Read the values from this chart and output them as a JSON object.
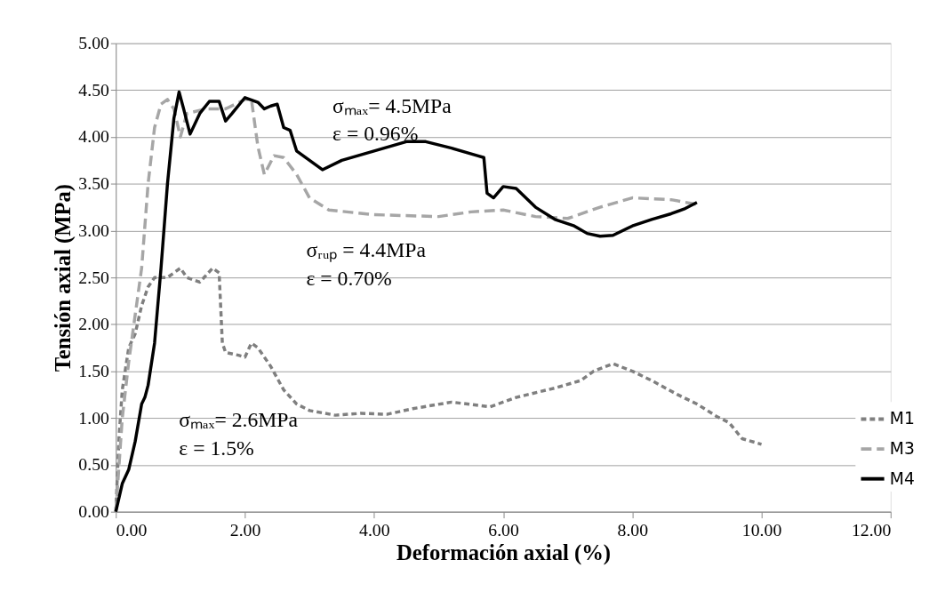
{
  "chart_data": {
    "type": "line",
    "xlabel": "Deformación axial (%)",
    "ylabel": "Tensión axial (MPa)",
    "xlim": [
      0,
      12
    ],
    "ylim": [
      0,
      5
    ],
    "xticks": [
      {
        "value": 0,
        "label": "0.00"
      },
      {
        "value": 2,
        "label": "2.00"
      },
      {
        "value": 4,
        "label": "4.00"
      },
      {
        "value": 6,
        "label": "6.00"
      },
      {
        "value": 8,
        "label": "8.00"
      },
      {
        "value": 10,
        "label": "10.00"
      },
      {
        "value": 12,
        "label": "12.00"
      }
    ],
    "yticks": [
      {
        "value": 0,
        "label": "0.00"
      },
      {
        "value": 0.5,
        "label": "0.50"
      },
      {
        "value": 1,
        "label": "1.00"
      },
      {
        "value": 1.5,
        "label": "1.50"
      },
      {
        "value": 2,
        "label": "2.00"
      },
      {
        "value": 2.5,
        "label": "2.50"
      },
      {
        "value": 3,
        "label": "3.00"
      },
      {
        "value": 3.5,
        "label": "3.50"
      },
      {
        "value": 4,
        "label": "4.00"
      },
      {
        "value": 4.5,
        "label": "4.50"
      },
      {
        "value": 5,
        "label": "5.00"
      }
    ],
    "grid": "y",
    "legend": "bottom right",
    "marker": "none",
    "annotations": [
      "σₘₐₓ= 4.5MPa\nε = 0.96%",
      "σᵣᵤₚ = 4.4MPa\nε = 0.70%",
      "σₘₐₓ= 2.6MPa\nε = 1.5%"
    ],
    "series": [
      {
        "name": "M1",
        "color": "#7f7f7f",
        "line_style": "dashed",
        "x": [
          0,
          0.05,
          0.1,
          0.2,
          0.3,
          0.4,
          0.5,
          0.6,
          0.8,
          1.0,
          1.1,
          1.3,
          1.5,
          1.6,
          1.65,
          1.7,
          1.9,
          2.0,
          2.1,
          2.2,
          2.4,
          2.6,
          2.8,
          3.0,
          3.4,
          3.8,
          4.2,
          4.6,
          5.2,
          5.8,
          6.2,
          6.8,
          7.2,
          7.4,
          7.7,
          8.0,
          8.3,
          8.7,
          9.0,
          9.3,
          9.5,
          9.7,
          10.0
        ],
        "values": [
          0,
          0.8,
          1.3,
          1.75,
          1.9,
          2.2,
          2.4,
          2.5,
          2.5,
          2.6,
          2.5,
          2.45,
          2.6,
          2.55,
          1.8,
          1.7,
          1.67,
          1.65,
          1.8,
          1.75,
          1.55,
          1.3,
          1.15,
          1.08,
          1.03,
          1.05,
          1.04,
          1.1,
          1.17,
          1.12,
          1.22,
          1.32,
          1.4,
          1.5,
          1.58,
          1.5,
          1.4,
          1.25,
          1.15,
          1.02,
          0.95,
          0.78,
          0.72
        ]
      },
      {
        "name": "M3",
        "color": "#a6a6a6",
        "line_style": "dashed",
        "x": [
          0,
          0.05,
          0.1,
          0.2,
          0.3,
          0.4,
          0.5,
          0.6,
          0.7,
          0.8,
          0.9,
          1.0,
          1.1,
          1.4,
          1.7,
          2.0,
          2.1,
          2.2,
          2.3,
          2.45,
          2.6,
          2.8,
          3.0,
          3.3,
          4.0,
          5.0,
          5.5,
          6.0,
          6.5,
          7.0,
          7.5,
          8.0,
          8.6,
          9.0
        ],
        "values": [
          0,
          0.5,
          1.0,
          1.6,
          2.1,
          2.6,
          3.5,
          4.1,
          4.35,
          4.4,
          4.3,
          4.0,
          4.25,
          4.3,
          4.3,
          4.4,
          4.4,
          3.9,
          3.6,
          3.8,
          3.78,
          3.6,
          3.35,
          3.22,
          3.17,
          3.15,
          3.2,
          3.22,
          3.15,
          3.13,
          3.25,
          3.35,
          3.33,
          3.28
        ]
      },
      {
        "name": "M4",
        "color": "#000000",
        "line_style": "solid",
        "x": [
          0,
          0.1,
          0.2,
          0.3,
          0.4,
          0.45,
          0.5,
          0.6,
          0.7,
          0.8,
          0.9,
          0.98,
          1.05,
          1.15,
          1.3,
          1.45,
          1.6,
          1.7,
          1.8,
          2.0,
          2.2,
          2.3,
          2.4,
          2.5,
          2.6,
          2.7,
          2.8,
          3.0,
          3.2,
          3.5,
          4.0,
          4.5,
          4.8,
          5.2,
          5.6,
          5.7,
          5.75,
          5.85,
          6.0,
          6.2,
          6.5,
          6.8,
          7.1,
          7.3,
          7.5,
          7.7,
          8.0,
          8.3,
          8.6,
          8.8,
          9.0
        ],
        "values": [
          0,
          0.3,
          0.45,
          0.75,
          1.15,
          1.22,
          1.35,
          1.8,
          2.6,
          3.5,
          4.2,
          4.48,
          4.3,
          4.03,
          4.25,
          4.38,
          4.38,
          4.17,
          4.25,
          4.42,
          4.37,
          4.3,
          4.33,
          4.35,
          4.1,
          4.07,
          3.85,
          3.75,
          3.65,
          3.75,
          3.85,
          3.95,
          3.95,
          3.88,
          3.8,
          3.78,
          3.4,
          3.35,
          3.47,
          3.45,
          3.25,
          3.12,
          3.05,
          2.97,
          2.94,
          2.95,
          3.05,
          3.12,
          3.18,
          3.23,
          3.3
        ]
      }
    ]
  }
}
